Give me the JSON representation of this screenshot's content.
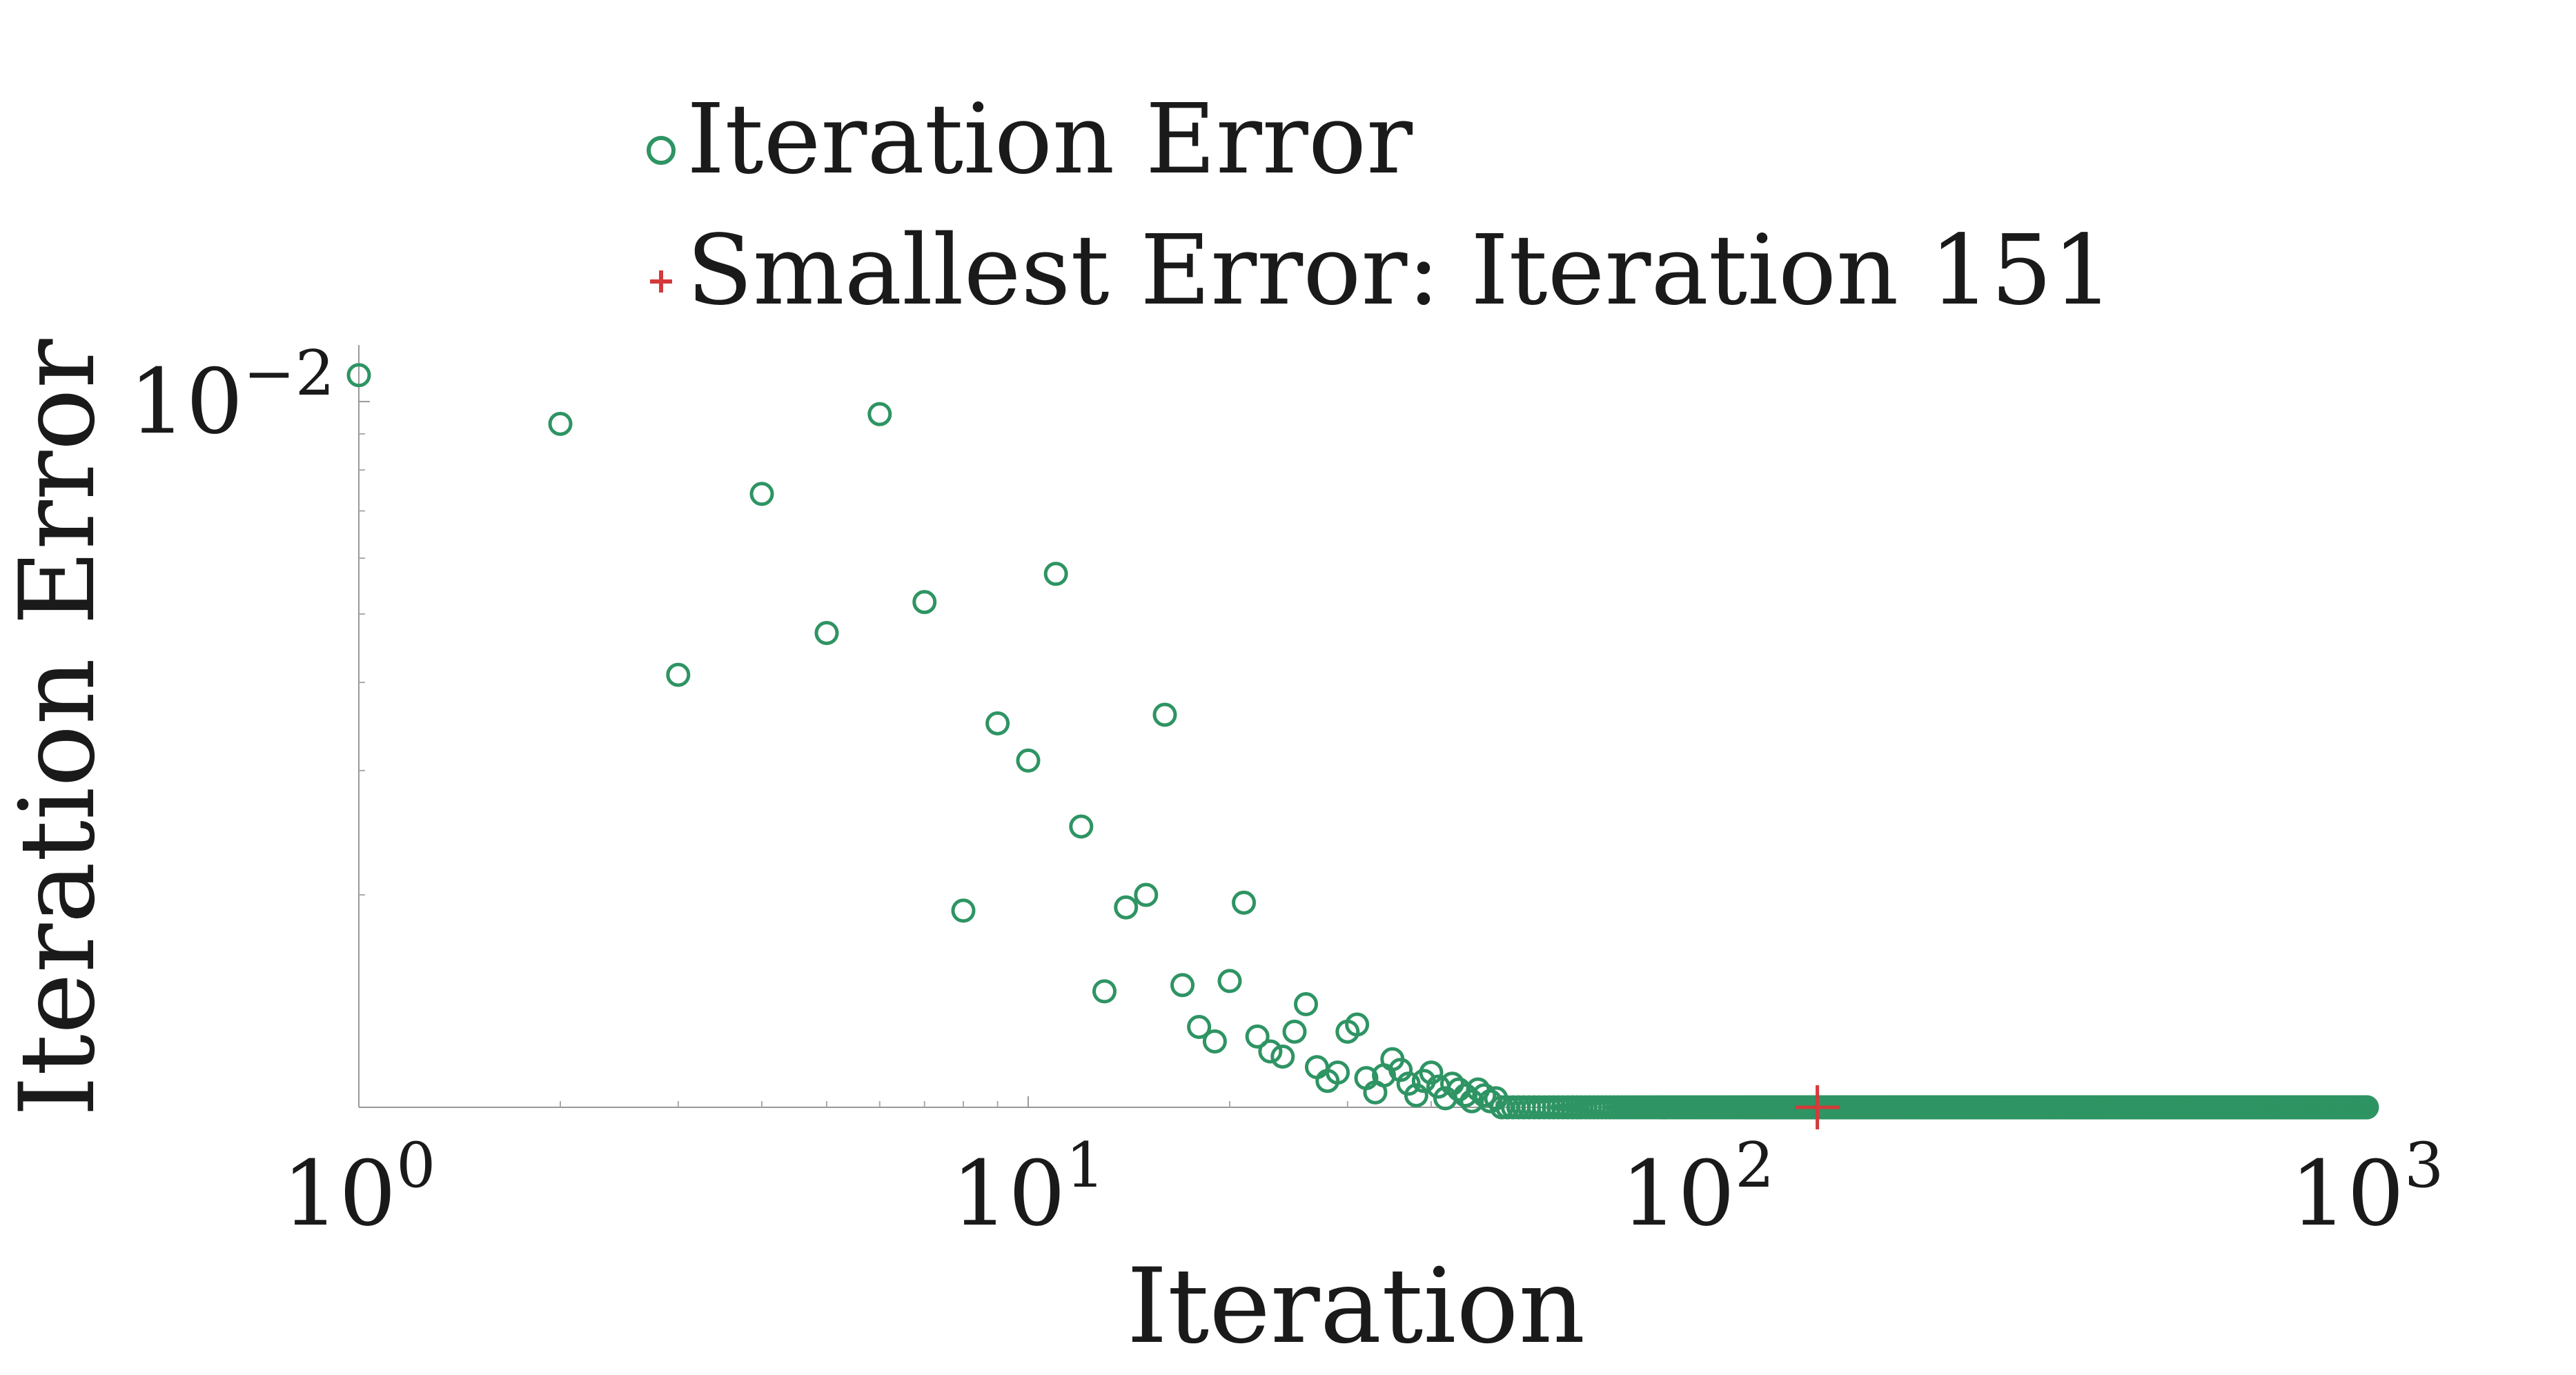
{
  "chart_data": {
    "type": "scatter",
    "title": "",
    "xlabel": "Iteration",
    "ylabel": "Iteration Error",
    "x_scale": "log",
    "y_scale": "log",
    "xlim": [
      1,
      1000
    ],
    "ylim": [
      0.001,
      0.0115
    ],
    "x_ticks": [
      {
        "value": 1,
        "base": "10",
        "exp": "0"
      },
      {
        "value": 10,
        "base": "10",
        "exp": "1"
      },
      {
        "value": 100,
        "base": "10",
        "exp": "2"
      },
      {
        "value": 1000,
        "base": "10",
        "exp": "3"
      }
    ],
    "y_ticks": [
      {
        "value": 0.01,
        "base": "10",
        "exp": "−2"
      }
    ],
    "y_minor_ticks": [
      0.002,
      0.003,
      0.004,
      0.005,
      0.006,
      0.007,
      0.008,
      0.009
    ],
    "legend_position": "top",
    "series": [
      {
        "name": "Iteration Error",
        "marker": "circle-open",
        "color": "#2e9463",
        "x": [
          1,
          2,
          3,
          4,
          5,
          6,
          7,
          8,
          9,
          10,
          11,
          12,
          13,
          14,
          15,
          16,
          17,
          18,
          19,
          20,
          21,
          22,
          23,
          24,
          25,
          26,
          27,
          28,
          29,
          30,
          31,
          32,
          33,
          34,
          35,
          36,
          37,
          38,
          39,
          40,
          41,
          42,
          43,
          44,
          45,
          46,
          47,
          48,
          49,
          50
        ],
        "y": [
          0.0109,
          0.0093,
          0.0041,
          0.0074,
          0.0047,
          0.0096,
          0.0052,
          0.0019,
          0.0035,
          0.0031,
          0.0057,
          0.0025,
          0.00146,
          0.00192,
          0.002,
          0.0036,
          0.00149,
          0.0013,
          0.00124,
          0.00151,
          0.00195,
          0.00126,
          0.0012,
          0.00118,
          0.00128,
          0.0014,
          0.00114,
          0.00109,
          0.00112,
          0.00128,
          0.00131,
          0.0011,
          0.00105,
          0.00111,
          0.00117,
          0.00113,
          0.00108,
          0.00104,
          0.00109,
          0.00112,
          0.00107,
          0.00103,
          0.00108,
          0.00106,
          0.00104,
          0.00102,
          0.00106,
          0.00104,
          0.00102,
          0.00103
        ],
        "dense_tail": {
          "x_range": [
            50,
            1000
          ],
          "approx_value": 0.001
        }
      },
      {
        "name": "Smallest Error: Iteration 151",
        "marker": "plus",
        "color": "#d43a3a",
        "x": [
          151
        ],
        "y": [
          0.001
        ]
      }
    ]
  }
}
